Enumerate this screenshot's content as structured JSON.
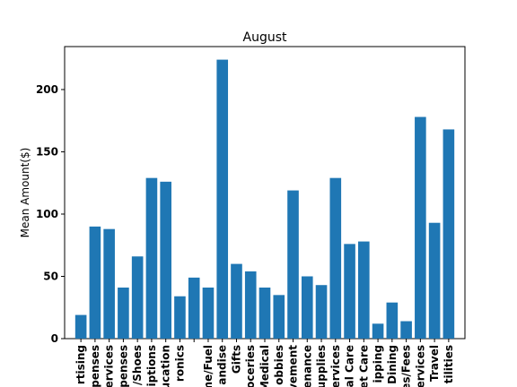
{
  "chart_data": {
    "type": "bar",
    "title": "August",
    "y_label": "Mean Amount($)",
    "categories": [
      "rtising",
      "penses",
      "ervices",
      "penses",
      "/Shoes",
      "iptions",
      "ucation",
      "ronics",
      null,
      "me/Fuel",
      "andise",
      "Gifts",
      "oceries",
      "Medical",
      "obbies",
      "vement",
      "enance",
      "upplies",
      "ervices",
      "al Care",
      "et Care",
      "ipping",
      "Dining",
      "es/Fees",
      "ervices",
      "Travel",
      "tilities"
    ],
    "values": [
      19,
      90,
      88,
      41,
      66,
      129,
      126,
      34,
      49,
      41,
      224,
      60,
      54,
      41,
      35,
      119,
      50,
      43,
      129,
      76,
      78,
      12,
      29,
      14,
      178,
      93,
      168
    ],
    "color": "#1f77b4",
    "ylim": [
      0,
      234.5
    ],
    "yticks": [
      0,
      50,
      100,
      150,
      200
    ],
    "grid": false
  }
}
